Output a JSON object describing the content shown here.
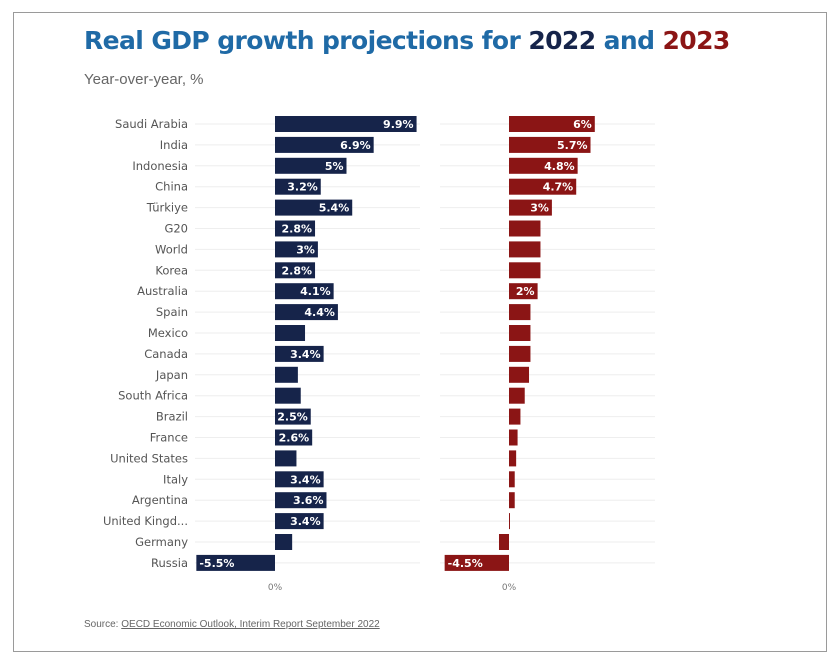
{
  "title": {
    "prefix": "Real GDP growth projections for ",
    "year1": "2022",
    "joiner": " and ",
    "year2": "2023"
  },
  "subtitle": "Year-over-year, %",
  "source": {
    "label": "Source:",
    "link_text": "OECD Economic Outlook, Interim Report September 2022"
  },
  "colors": {
    "series_2022": "#16244a",
    "series_2023": "#8b1515",
    "title_blue": "#1f6aa6"
  },
  "chart_data": {
    "type": "bar",
    "orientation": "horizontal",
    "categories": [
      "Saudi Arabia",
      "India",
      "Indonesia",
      "China",
      "Türkiye",
      "G20",
      "World",
      "Korea",
      "Australia",
      "Spain",
      "Mexico",
      "Canada",
      "Japan",
      "South Africa",
      "Brazil",
      "France",
      "United States",
      "Italy",
      "Argentina",
      "United Kingd...",
      "Germany",
      "Russia"
    ],
    "series": [
      {
        "name": "2022",
        "values": [
          9.9,
          6.9,
          5,
          3.2,
          5.4,
          2.8,
          3,
          2.8,
          4.1,
          4.4,
          2.1,
          3.4,
          1.6,
          1.8,
          2.5,
          2.6,
          1.5,
          3.4,
          3.6,
          3.4,
          1.2,
          -5.5
        ],
        "labels": [
          "9.9%",
          "6.9%",
          "5%",
          "3.2%",
          "5.4%",
          "2.8%",
          "3%",
          "2.8%",
          "4.1%",
          "4.4%",
          "",
          "3.4%",
          "",
          "",
          "2.5%",
          "2.6%",
          "",
          "3.4%",
          "3.6%",
          "3.4%",
          "",
          "-5.5%"
        ]
      },
      {
        "name": "2023",
        "values": [
          6,
          5.7,
          4.8,
          4.7,
          3,
          2.2,
          2.2,
          2.2,
          2,
          1.5,
          1.5,
          1.5,
          1.4,
          1.1,
          0.8,
          0.6,
          0.5,
          0.4,
          0.4,
          0,
          -0.7,
          -4.5
        ],
        "labels": [
          "6%",
          "5.7%",
          "4.8%",
          "4.7%",
          "3%",
          "",
          "",
          "",
          "2%",
          "",
          "",
          "",
          "",
          "",
          "",
          "",
          "",
          "",
          "",
          "",
          "",
          "-4.5%"
        ]
      }
    ],
    "zero_label": "0%",
    "grid": true
  }
}
